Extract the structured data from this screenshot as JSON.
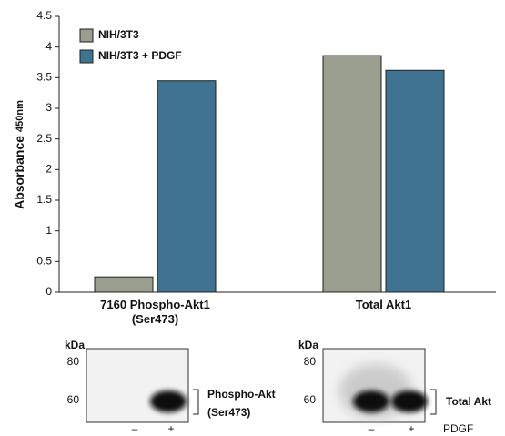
{
  "chart_data": {
    "type": "bar",
    "ylabel": "Absorbance",
    "ylabel_sub": "450nm",
    "categories": [
      "7160 Phospho-Akt1 (Ser473)",
      "Total Akt1"
    ],
    "series": [
      {
        "name": "NIH/3T3",
        "color": "#9a9e8f",
        "values": [
          0.25,
          3.86
        ]
      },
      {
        "name": "NIH/3T3 + PDGF",
        "color": "#3f7391",
        "values": [
          3.45,
          3.62
        ]
      }
    ],
    "ylim": [
      0,
      4.5
    ],
    "yticks": [
      0,
      0.5,
      1,
      1.5,
      2,
      2.5,
      3,
      3.5,
      4,
      4.5
    ],
    "legend": "top-left"
  },
  "blots": [
    {
      "kda": "kDa",
      "markers": [
        "80",
        "60"
      ],
      "label": [
        "Phospho-Akt",
        "(Ser473)"
      ],
      "lanes": [
        "–",
        "+"
      ]
    },
    {
      "kda": "kDa",
      "markers": [
        "80",
        "60"
      ],
      "label": [
        "Total Akt"
      ],
      "lanes": [
        "–",
        "+"
      ]
    }
  ],
  "treatment": "PDGF"
}
